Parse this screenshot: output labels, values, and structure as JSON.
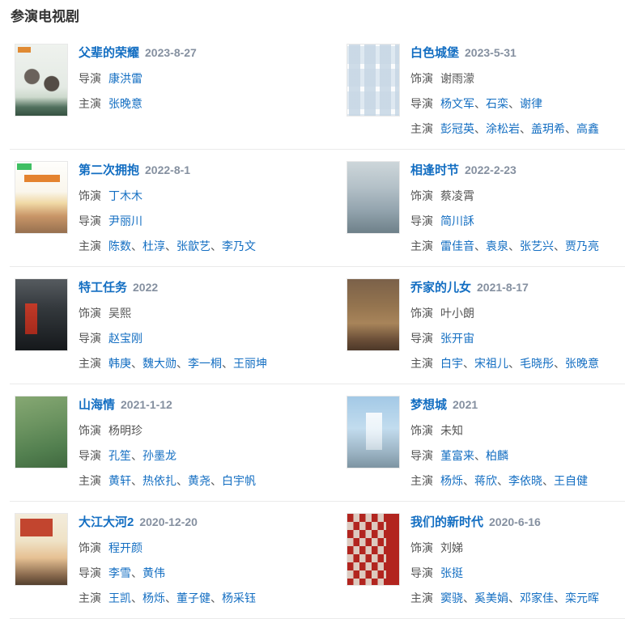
{
  "section": {
    "title": "参演电视剧"
  },
  "separator": "、",
  "colors": {
    "link_blue": "#136ec2",
    "date_gray": "#8590a0",
    "label_gray": "#555555",
    "divider": "#eaeaea"
  },
  "entries": [
    {
      "title": "父辈的荣耀",
      "date": "2023-8-27",
      "poster": "fubei-de-rongyao-poster",
      "poster_style": "background-image:linear-gradient(#e08a33,#e08a33),radial-gradient(circle at 32% 45%,#6a625c 9px,rgba(0,0,0,0) 10px),radial-gradient(circle at 70% 55%,#544c46 9px,rgba(0,0,0,0) 10px),linear-gradient(180deg,#eff2ee 0%,#e4eae4 60%,#cddacd 74%,#51705e 88%,#365241 100%);background-size:16px 7px,100% 100%,100% 100%,100% 100%;background-position:3px 3px,0 0,0 0,0 0;background-repeat:no-repeat",
      "credits": [
        {
          "label": "导演",
          "names": [
            {
              "text": "康洪雷",
              "link": true
            }
          ]
        },
        {
          "label": "主演",
          "names": [
            {
              "text": "张晚意",
              "link": true
            }
          ]
        }
      ]
    },
    {
      "title": "白色城堡",
      "date": "2023-5-31",
      "poster": "baise-chengbao-poster",
      "poster_style": "background-image:repeating-linear-gradient(90deg,rgba(198,214,228,0.85) 2px 16px,rgba(255,255,255,0) 16px 21px),repeating-linear-gradient(0deg,rgba(220,231,240,0.9) 8px 30px,#fbfcfd 30px 36px),linear-gradient(180deg,#f6f9fb,#edf2f7);background-repeat:repeat,repeat,no-repeat",
      "credits": [
        {
          "label": "饰演",
          "names": [
            {
              "text": "谢雨濛",
              "link": false
            }
          ]
        },
        {
          "label": "导演",
          "names": [
            {
              "text": "杨文军",
              "link": true
            },
            {
              "text": "石栾",
              "link": true
            },
            {
              "text": "谢律",
              "link": true
            }
          ]
        },
        {
          "label": "主演",
          "names": [
            {
              "text": "彭冠英",
              "link": true
            },
            {
              "text": "涂松岩",
              "link": true
            },
            {
              "text": "盖玥希",
              "link": true
            },
            {
              "text": "高鑫",
              "link": true
            }
          ]
        }
      ]
    },
    {
      "title": "第二次拥抱",
      "date": "2022-8-1",
      "poster": "dierci-yongbao-poster",
      "poster_style": "background-image:linear-gradient(#3fbf63,#3fbf63),linear-gradient(90deg,#e4832f,#e4832f),linear-gradient(180deg,#fefefc 0%,#faf6ec 42%,#f0d9a5 58%,#c99668 76%,#96704f 100%);background-size:18px 8px,44px 9px,100% 100%;background-position:2px 2px,11px 16px,0 0;background-repeat:no-repeat",
      "credits": [
        {
          "label": "饰演",
          "names": [
            {
              "text": "丁木木",
              "link": true
            }
          ]
        },
        {
          "label": "导演",
          "names": [
            {
              "text": "尹丽川",
              "link": true
            }
          ]
        },
        {
          "label": "主演",
          "names": [
            {
              "text": "陈数",
              "link": true
            },
            {
              "text": "杜淳",
              "link": true
            },
            {
              "text": "张歆艺",
              "link": true
            },
            {
              "text": "李乃文",
              "link": true
            }
          ]
        }
      ]
    },
    {
      "title": "相逢时节",
      "date": "2022-2-23",
      "poster": "xiangfeng-shijie-poster",
      "poster_style": "background:linear-gradient(180deg,#cdd6da 0%,#b4c1c8 35%,#93a4ae 68%,#6e8089 100%)",
      "credits": [
        {
          "label": "饰演",
          "names": [
            {
              "text": "蔡凌霄",
              "link": false
            }
          ]
        },
        {
          "label": "导演",
          "names": [
            {
              "text": "简川訸",
              "link": true
            }
          ]
        },
        {
          "label": "主演",
          "names": [
            {
              "text": "雷佳音",
              "link": true
            },
            {
              "text": "袁泉",
              "link": true
            },
            {
              "text": "张艺兴",
              "link": true
            },
            {
              "text": "贾乃亮",
              "link": true
            }
          ]
        }
      ]
    },
    {
      "title": "特工任务",
      "date": "2022",
      "poster": "tegong-renwu-poster",
      "poster_style": "background-image:linear-gradient(#c23a28,#a52a1c),linear-gradient(180deg,#565b60 0%,#34393d 40%,#15181b 100%);background-size:15px 38px,100% 100%;background-position:12px 30px,0 0;background-repeat:no-repeat",
      "credits": [
        {
          "label": "饰演",
          "names": [
            {
              "text": "吴熙",
              "link": false
            }
          ]
        },
        {
          "label": "导演",
          "names": [
            {
              "text": "赵宝刚",
              "link": true
            }
          ]
        },
        {
          "label": "主演",
          "names": [
            {
              "text": "韩庚",
              "link": true
            },
            {
              "text": "魏大勋",
              "link": true
            },
            {
              "text": "李一桐",
              "link": true
            },
            {
              "text": "王丽坤",
              "link": true
            }
          ]
        }
      ]
    },
    {
      "title": "乔家的儿女",
      "date": "2021-8-17",
      "poster": "qiaojia-de-ernv-poster",
      "poster_style": "background:linear-gradient(180deg,#7b6149 0%,#94744f 38%,#a8845a 62%,#6b4f38 85%,#4c3728 100%)",
      "credits": [
        {
          "label": "饰演",
          "names": [
            {
              "text": "叶小朗",
              "link": false
            }
          ]
        },
        {
          "label": "导演",
          "names": [
            {
              "text": "张开宙",
              "link": true
            }
          ]
        },
        {
          "label": "主演",
          "names": [
            {
              "text": "白宇",
              "link": true
            },
            {
              "text": "宋祖儿",
              "link": true
            },
            {
              "text": "毛晓彤",
              "link": true
            },
            {
              "text": "张晚意",
              "link": true
            }
          ]
        }
      ]
    },
    {
      "title": "山海情",
      "date": "2021-1-12",
      "poster": "shanhaiqing-poster",
      "poster_style": "background:linear-gradient(165deg,#86a873 0%,#6b9360 40%,#527f4f 72%,#40683f 100%)",
      "credits": [
        {
          "label": "饰演",
          "names": [
            {
              "text": "杨明珍",
              "link": false
            }
          ]
        },
        {
          "label": "导演",
          "names": [
            {
              "text": "孔笙",
              "link": true
            },
            {
              "text": "孙墨龙",
              "link": true
            }
          ]
        },
        {
          "label": "主演",
          "names": [
            {
              "text": "黄轩",
              "link": true
            },
            {
              "text": "热依扎",
              "link": true
            },
            {
              "text": "黄尧",
              "link": true
            },
            {
              "text": "白宇帆",
              "link": true
            }
          ]
        }
      ]
    },
    {
      "title": "梦想城",
      "date": "2021",
      "poster": "mengxiangcheng-poster",
      "poster_style": "background-image:linear-gradient(180deg,rgba(255,255,255,0.88),rgba(255,255,255,0.45)),linear-gradient(180deg,#a3c9e6 0%,#c2dcee 45%,#9cb4c4 78%,#7d94a2 100%);background-size:20px 46px,100% 100%;background-position:23px 20px,0 0;background-repeat:no-repeat",
      "credits": [
        {
          "label": "饰演",
          "names": [
            {
              "text": "未知",
              "link": false
            }
          ]
        },
        {
          "label": "导演",
          "names": [
            {
              "text": "堇富来",
              "link": true
            },
            {
              "text": "柏麟",
              "link": true
            }
          ]
        },
        {
          "label": "主演",
          "names": [
            {
              "text": "杨烁",
              "link": true
            },
            {
              "text": "蒋欣",
              "link": true
            },
            {
              "text": "李依晓",
              "link": true
            },
            {
              "text": "王自健",
              "link": true
            }
          ]
        }
      ]
    },
    {
      "title": "大江大河2",
      "date": "2020-12-20",
      "poster": "dajiang-dahe2-poster",
      "poster_style": "background-image:linear-gradient(#c2452f,#c2452f),linear-gradient(180deg,#f3ecdc 0%,#efe2c6 38%,#e6c193 62%,#8a6a4e 86%,#54402e 100%);background-size:40px 22px,100% 100%;background-position:6px 6px,0 0;background-repeat:no-repeat",
      "credits": [
        {
          "label": "饰演",
          "names": [
            {
              "text": "程开颜",
              "link": true
            }
          ]
        },
        {
          "label": "导演",
          "names": [
            {
              "text": "李雪",
              "link": true
            },
            {
              "text": "黄伟",
              "link": true
            }
          ]
        },
        {
          "label": "主演",
          "names": [
            {
              "text": "王凯",
              "link": true
            },
            {
              "text": "杨烁",
              "link": true
            },
            {
              "text": "董子健",
              "link": true
            },
            {
              "text": "杨采钰",
              "link": true
            }
          ]
        }
      ]
    },
    {
      "title": "我们的新时代",
      "date": "2020-6-16",
      "poster": "women-de-xinshidai-poster",
      "poster_style": "background-image:linear-gradient(#b2251f,#b2251f),repeating-conic-gradient(#ddcabf 0% 25%,#b2251f 25% 50%);background-size:16px 100%,15px 20px;background-position:right top,0 0;background-repeat:no-repeat,repeat",
      "credits": [
        {
          "label": "饰演",
          "names": [
            {
              "text": "刘娣",
              "link": false
            }
          ]
        },
        {
          "label": "导演",
          "names": [
            {
              "text": "张挺",
              "link": true
            }
          ]
        },
        {
          "label": "主演",
          "names": [
            {
              "text": "窦骁",
              "link": true
            },
            {
              "text": "奚美娟",
              "link": true
            },
            {
              "text": "邓家佳",
              "link": true
            },
            {
              "text": "栾元晖",
              "link": true
            }
          ]
        }
      ]
    }
  ]
}
